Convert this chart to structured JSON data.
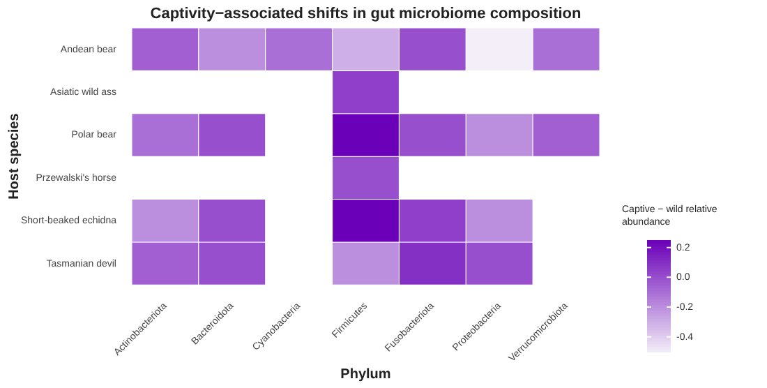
{
  "chart_data": {
    "type": "heatmap",
    "title": "Captivity−associated shifts in gut microbiome composition",
    "xlabel": "Phylum",
    "ylabel": "Host species",
    "clabel": "Captive − wild relative abundance",
    "categories": [
      "Actinobacteriota",
      "Bacteroidota",
      "Cyanobacteria",
      "Firmicutes",
      "Fusobacteriota",
      "Proteobacteria",
      "Verrucomicrobiota"
    ],
    "y_categories": [
      "Andean bear",
      "Asiatic wild ass",
      "Polar bear",
      "Przewalski's horse",
      "Short-beaked echidna",
      "Tasmanian devil"
    ],
    "cells": [
      [
        -0.05,
        -0.2,
        -0.1,
        -0.3,
        0.0,
        -0.5,
        -0.1
      ],
      [
        null,
        null,
        null,
        0.05,
        null,
        null,
        null
      ],
      [
        -0.1,
        0.0,
        null,
        0.25,
        0.0,
        -0.2,
        -0.05
      ],
      [
        null,
        null,
        null,
        0.0,
        null,
        null,
        null
      ],
      [
        -0.2,
        0.0,
        null,
        0.25,
        0.05,
        -0.2,
        null
      ],
      [
        -0.05,
        0.0,
        null,
        -0.2,
        0.1,
        0.0,
        null
      ]
    ],
    "clim": [
      -0.5,
      0.25
    ],
    "cticks": [
      0.2,
      {
        "value": 0,
        "label": "0.0"
      },
      -0.2,
      -0.4
    ]
  }
}
